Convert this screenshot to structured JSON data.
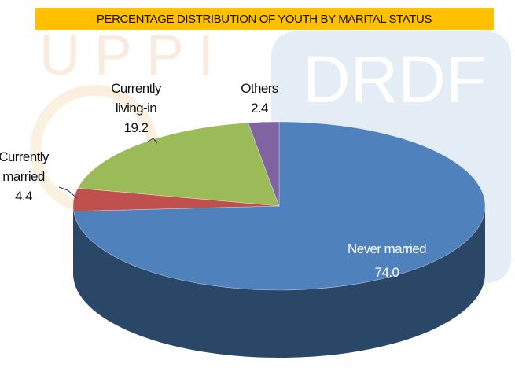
{
  "watermark": [
    "UPPI",
    "DRDF"
  ],
  "chart_data": {
    "type": "pie",
    "title": "PERCENTAGE DISTRIBUTION OF YOUTH BY MARITAL STATUS",
    "categories": [
      "Never married",
      "Currently married",
      "Currently living-in",
      "Others"
    ],
    "values": [
      74.0,
      4.4,
      19.2,
      2.4
    ],
    "value_labels": [
      "74.0",
      "4.4",
      "19.2",
      "2.4"
    ],
    "colors": [
      "#4f81bd",
      "#c0504d",
      "#9bbb59",
      "#8064a2"
    ]
  }
}
